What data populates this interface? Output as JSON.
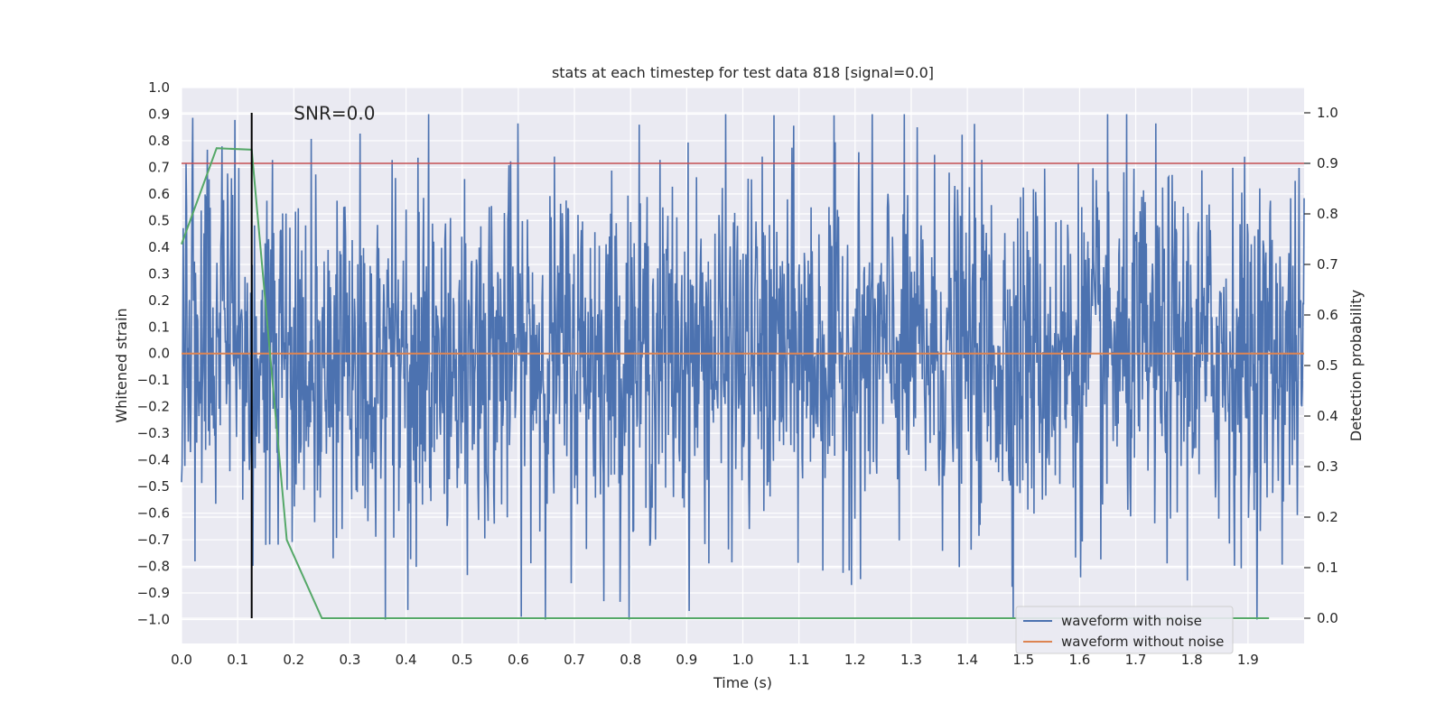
{
  "chart_data": {
    "type": "line",
    "title": "stats at each timestep for test data 818 [signal=0.0]",
    "xlabel": "Time (s)",
    "ylabel": "Whitened strain",
    "y2label": "Detection probability",
    "xlim": [
      0.0,
      2.0
    ],
    "ylim": [
      -1.09,
      1.0
    ],
    "y2lim": [
      -0.05,
      1.05
    ],
    "x_ticks": [
      "0.0",
      "0.1",
      "0.2",
      "0.3",
      "0.4",
      "0.5",
      "0.6",
      "0.7",
      "0.8",
      "0.9",
      "1.0",
      "1.1",
      "1.2",
      "1.3",
      "1.4",
      "1.5",
      "1.6",
      "1.7",
      "1.8",
      "1.9"
    ],
    "y_ticks": [
      "1.0",
      "0.9",
      "0.8",
      "0.7",
      "0.6",
      "0.5",
      "0.4",
      "0.3",
      "0.2",
      "0.1",
      "0.0",
      "−0.1",
      "−0.2",
      "−0.3",
      "−0.4",
      "−0.5",
      "−0.6",
      "−0.7",
      "−0.8",
      "−0.9",
      "−1.0"
    ],
    "y2_ticks": [
      "1.0",
      "0.9",
      "0.8",
      "0.7",
      "0.6",
      "0.5",
      "0.4",
      "0.3",
      "0.2",
      "0.1",
      "0.0"
    ],
    "annotation": "SNR=0.0",
    "threshold_right_axis": 0.9,
    "marker_time": 0.125,
    "legend": {
      "location": "lower-right",
      "entries": [
        "waveform with noise",
        "waveform without noise"
      ]
    },
    "series": [
      {
        "name": "waveform with noise",
        "axis": "left",
        "kind": "noise",
        "x_range": [
          0.0,
          2.0
        ],
        "n_points": 2000,
        "amplitude_std": 0.33,
        "y_range": [
          -1.0,
          0.9
        ]
      },
      {
        "name": "waveform without noise",
        "axis": "left",
        "x": [
          0.0,
          2.0
        ],
        "y": [
          0.0,
          0.0
        ]
      },
      {
        "name": "detection probability",
        "axis": "right",
        "x": [
          0.0,
          0.0625,
          0.125,
          0.1875,
          0.25,
          1.9375
        ],
        "y": [
          0.74,
          0.93,
          0.927,
          0.155,
          0.0,
          0.0
        ]
      }
    ],
    "colors": {
      "background": "#eaeaf2",
      "grid": "#ffffff",
      "noise": "#4c72b0",
      "clean": "#dd8452",
      "probability": "#55a868",
      "threshold": "#c44e52",
      "marker": "#000000"
    }
  }
}
